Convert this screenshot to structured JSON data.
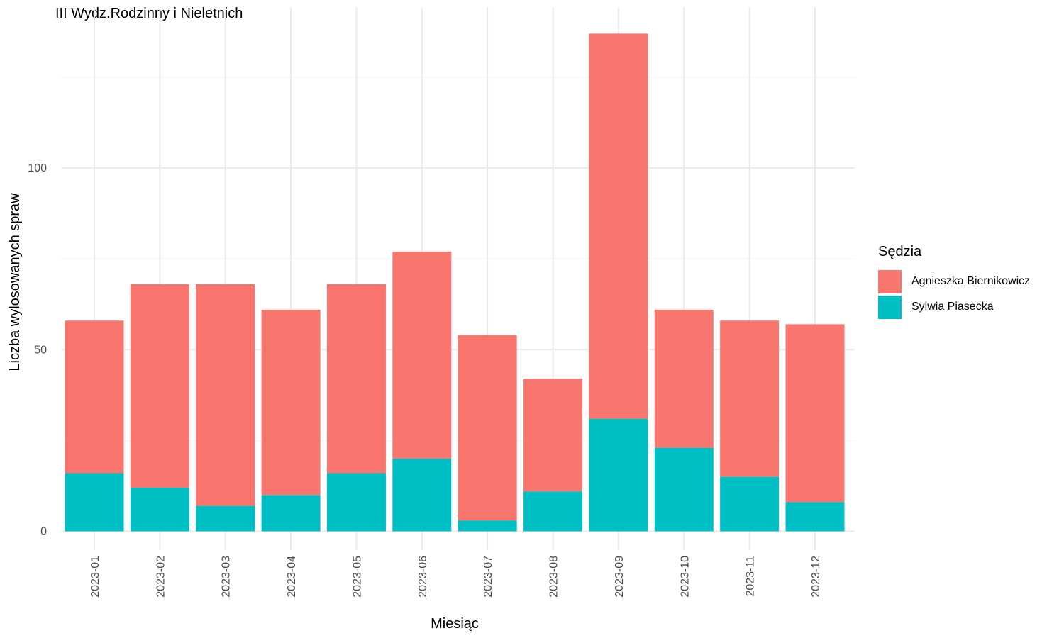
{
  "chart_data": {
    "type": "bar",
    "stacked": true,
    "title": "III Wydz.Rodzinny i Nieletnich",
    "xlabel": "Miesiąc",
    "ylabel": "Liczba wylosowanych spraw",
    "categories": [
      "2023-01",
      "2023-02",
      "2023-03",
      "2023-04",
      "2023-05",
      "2023-06",
      "2023-07",
      "2023-08",
      "2023-09",
      "2023-10",
      "2023-11",
      "2023-12"
    ],
    "series": [
      {
        "name": "Sylwia Piasecka",
        "color": "#00BFC4",
        "values": [
          16,
          12,
          7,
          10,
          16,
          20,
          3,
          11,
          31,
          23,
          15,
          8
        ]
      },
      {
        "name": "Agnieszka Biernikowicz",
        "color": "#F8766D",
        "values": [
          42,
          56,
          61,
          51,
          52,
          57,
          51,
          31,
          106,
          38,
          43,
          49
        ]
      }
    ],
    "yticks": [
      0,
      50,
      100
    ],
    "ylim": [
      -5,
      143
    ],
    "legend_title": "Sędzia",
    "legend_order": [
      "Agnieszka Biernikowicz",
      "Sylwia Piasecka"
    ],
    "legend_position": "right",
    "grid": true
  }
}
